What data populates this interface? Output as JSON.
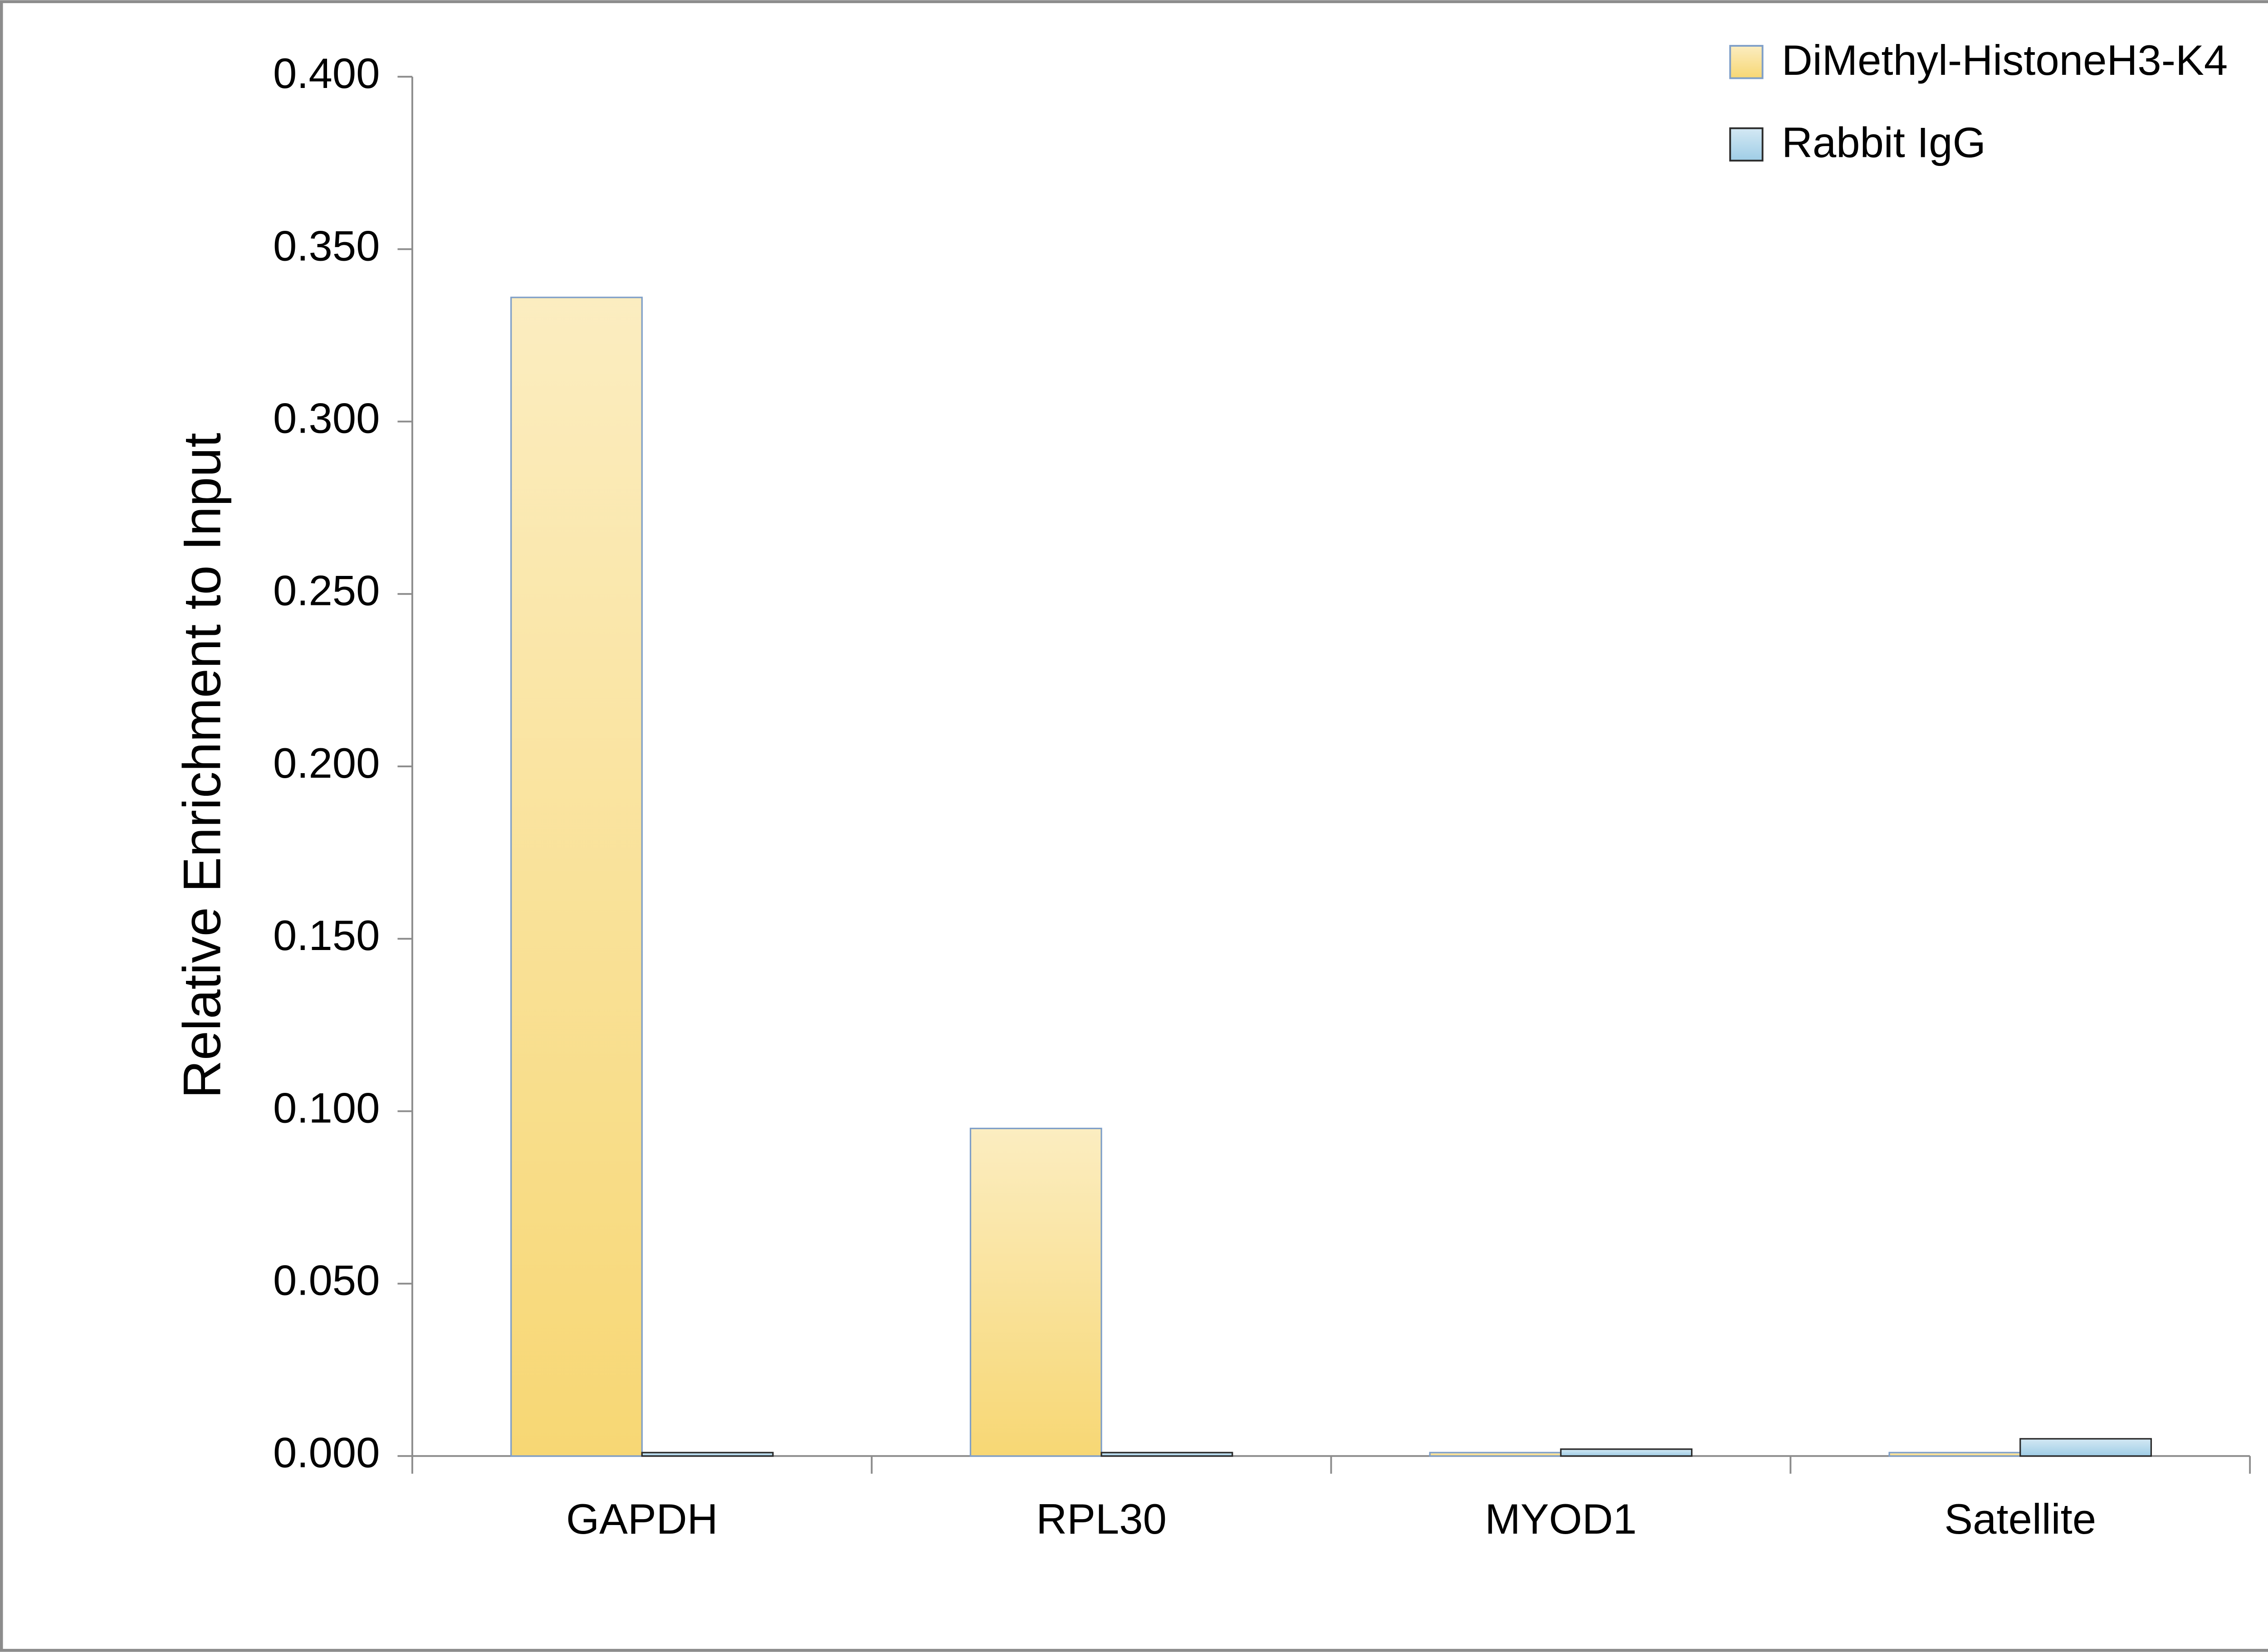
{
  "chart_data": {
    "type": "bar",
    "y_label": "Relative Enrichment to Input",
    "categories": [
      "GAPDH",
      "RPL30",
      "MYOD1",
      "Satellite"
    ],
    "series": [
      {
        "name": "DiMethyl-HistoneH3-K4",
        "color": "#f7d774",
        "values": [
          0.336,
          0.095,
          0.001,
          0.001
        ]
      },
      {
        "name": "Rabbit IgG",
        "color": "#9fcde6",
        "values": [
          0.001,
          0.001,
          0.002,
          0.005
        ]
      }
    ],
    "ylim": [
      0,
      0.4
    ],
    "yticks": [
      {
        "value": 0,
        "label": "0.000"
      },
      {
        "value": 0.05,
        "label": "0.050"
      },
      {
        "value": 0.1,
        "label": "0.100"
      },
      {
        "value": 0.15,
        "label": "0.150"
      },
      {
        "value": 0.2,
        "label": "0.200"
      },
      {
        "value": 0.25,
        "label": "0.250"
      },
      {
        "value": 0.3,
        "label": "0.300"
      },
      {
        "value": 0.35,
        "label": "0.350"
      },
      {
        "value": 0.4,
        "label": "0.400"
      }
    ],
    "grid": false,
    "legend": "upper right"
  }
}
